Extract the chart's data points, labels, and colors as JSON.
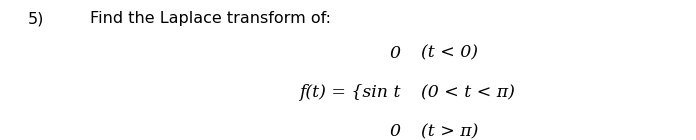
{
  "number": "5)",
  "instruction": "Find the Laplace transform of:",
  "line1": "0",
  "line1_cond": "(t < 0)",
  "line2_lhs": "f(t) = {sin t",
  "line2_cond": "(0 < t < π)",
  "line3": "0",
  "line3_cond": "(t > π)",
  "bg_color": "#ffffff",
  "text_color": "#000000",
  "font_size_label": 11.5,
  "font_size_math": 12.5
}
